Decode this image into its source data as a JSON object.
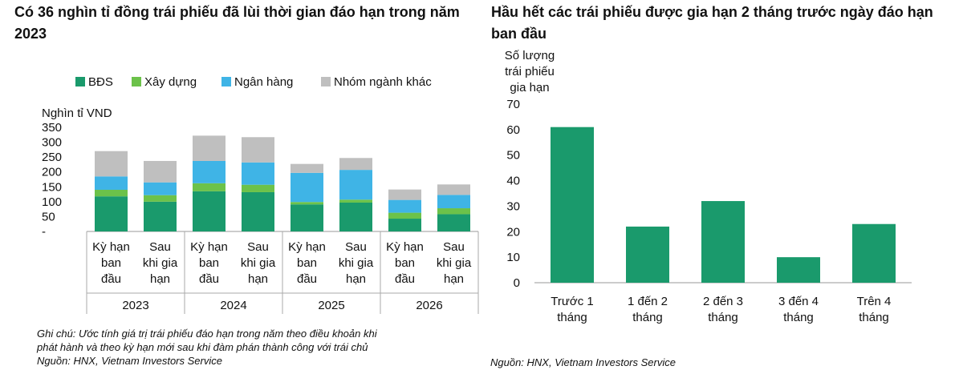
{
  "left_title": "Có 36 nghìn tỉ đồng trái phiếu đã lùi thời gian đáo hạn trong năm 2023",
  "right_title": "Hầu hết các trái phiếu được gia hạn 2 tháng trước ngày đáo hạn ban đầu",
  "left_note": {
    "line1": "Ghi chú: Ước tính giá trị trái phiếu đáo hạn trong năm theo điều khoản khi",
    "line2": "phát hành và theo kỳ hạn mới sau khi đàm phán thành công với trái chủ",
    "line3": "Nguồn: HNX, Vietnam Investors Service"
  },
  "right_source": "Nguồn: HNX, Vietnam Investors Service",
  "colors": {
    "bds": "#1a9a6c",
    "xaydung": "#6cc24a",
    "nganhang": "#3fb4e6",
    "khac": "#bfbfbf",
    "bar": "#1a9a6c"
  },
  "chart_data": [
    {
      "type": "bar",
      "stacked": true,
      "title": "Có 36 nghìn tỉ đồng trái phiếu đã lùi thời gian đáo hạn trong năm 2023",
      "ylabel": "Nghìn tỉ VND",
      "ylim": [
        0,
        350
      ],
      "yticks": [
        "-",
        "50",
        "100",
        "150",
        "200",
        "250",
        "300",
        "350"
      ],
      "legend_position": "top",
      "categories": [
        [
          "Kỳ hạn",
          "ban",
          "đầu"
        ],
        [
          "Sau",
          "khi gia",
          "hạn"
        ],
        [
          "Kỳ hạn",
          "ban",
          "đầu"
        ],
        [
          "Sau",
          "khi gia",
          "hạn"
        ],
        [
          "Kỳ hạn",
          "ban",
          "đầu"
        ],
        [
          "Sau",
          "khi gia",
          "hạn"
        ],
        [
          "Kỳ hạn",
          "ban",
          "đầu"
        ],
        [
          "Sau",
          "khi gia",
          "hạn"
        ]
      ],
      "groups": [
        "2023",
        "2024",
        "2025",
        "2026"
      ],
      "series": [
        {
          "name": "BĐS",
          "color_key": "bds",
          "values": [
            118,
            100,
            135,
            132,
            91,
            97,
            43,
            58
          ]
        },
        {
          "name": "Xây dựng",
          "color_key": "xaydung",
          "values": [
            22,
            22,
            27,
            25,
            8,
            10,
            20,
            20
          ]
        },
        {
          "name": "Ngân hàng",
          "color_key": "nganhang",
          "values": [
            45,
            43,
            75,
            75,
            98,
            100,
            43,
            45
          ]
        },
        {
          "name": "Nhóm ngành khác",
          "color_key": "khac",
          "values": [
            85,
            72,
            85,
            85,
            30,
            40,
            35,
            35
          ]
        }
      ]
    },
    {
      "type": "bar",
      "title": "Hầu hết các trái phiếu được gia hạn 2 tháng trước ngày đáo hạn ban đầu",
      "ylabel": [
        "Số lượng",
        "trái phiếu",
        "gia hạn"
      ],
      "ylim": [
        0,
        70
      ],
      "yticks": [
        "0",
        "10",
        "20",
        "30",
        "40",
        "50",
        "60",
        "70"
      ],
      "categories": [
        [
          "Trước 1",
          "tháng"
        ],
        [
          "1 đến 2",
          "tháng"
        ],
        [
          "2 đến 3",
          "tháng"
        ],
        [
          "3 đến 4",
          "tháng"
        ],
        [
          "Trên 4",
          "tháng"
        ]
      ],
      "values": [
        61,
        22,
        32,
        10,
        23
      ]
    }
  ]
}
